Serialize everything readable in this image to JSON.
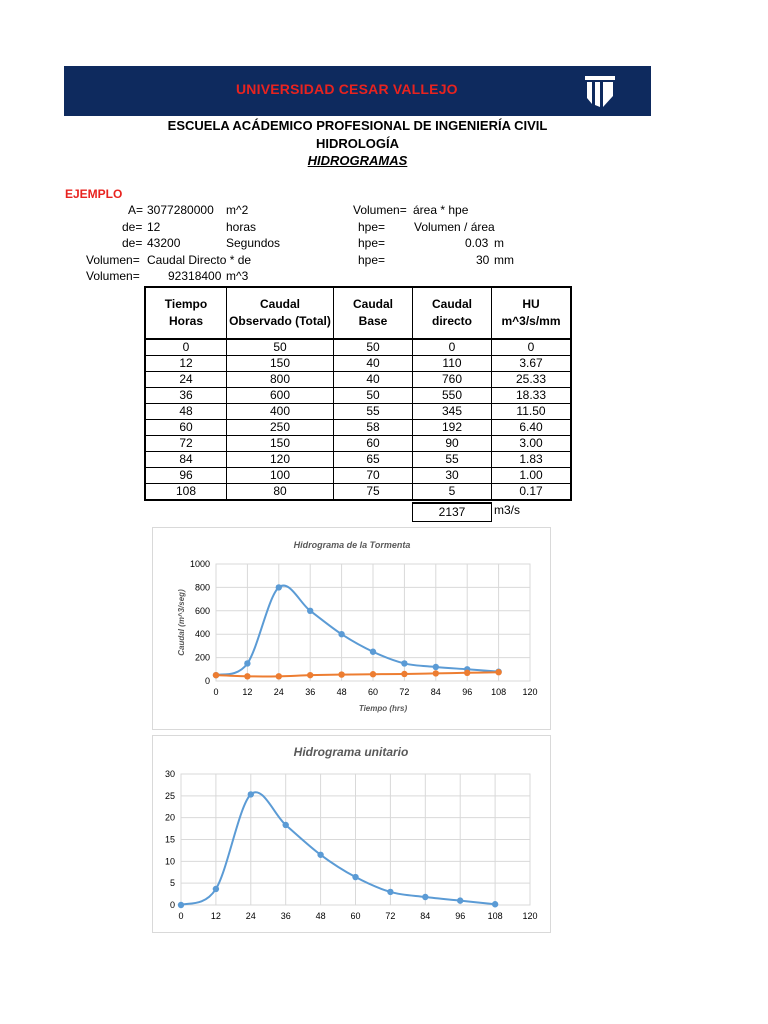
{
  "header": {
    "university": "UNIVERSIDAD CESAR VALLEJO",
    "school": "ESCUELA ACÁDEMICO PROFESIONAL DE INGENIERÍA CIVIL",
    "course": "HIDROLOGÍA",
    "topic": "HIDROGRAMAS"
  },
  "example": {
    "label": "EJEMPLO",
    "left_lines": [
      {
        "key": "A=",
        "value": "3077280000",
        "unit": "m^2"
      },
      {
        "key": "de=",
        "value": "12",
        "unit": "horas"
      },
      {
        "key": "de=",
        "value": "43200",
        "unit": "Segundos"
      },
      {
        "key": "Volumen=",
        "value": "Caudal Directo * de",
        "unit": ""
      },
      {
        "key": "Volumen=",
        "value": "92318400",
        "unit": "m^3"
      }
    ],
    "right_lines": [
      {
        "key": "Volumen=",
        "value": "área * hpe",
        "unit": ""
      },
      {
        "key": "hpe=",
        "value": "Volumen / área",
        "unit": ""
      },
      {
        "key": "hpe=",
        "value": "0.03",
        "unit": "m"
      },
      {
        "key": "hpe=",
        "value": "30",
        "unit": "mm"
      }
    ]
  },
  "table": {
    "headers": [
      [
        "Tiempo",
        "Horas"
      ],
      [
        "Caudal",
        "Observado (Total)"
      ],
      [
        "Caudal",
        "Base"
      ],
      [
        "Caudal",
        "directo"
      ],
      [
        "HU",
        "m^3/s/mm"
      ]
    ],
    "rows": [
      [
        "0",
        "50",
        "50",
        "0",
        "0"
      ],
      [
        "12",
        "150",
        "40",
        "110",
        "3.67"
      ],
      [
        "24",
        "800",
        "40",
        "760",
        "25.33"
      ],
      [
        "36",
        "600",
        "50",
        "550",
        "18.33"
      ],
      [
        "48",
        "400",
        "55",
        "345",
        "11.50"
      ],
      [
        "60",
        "250",
        "58",
        "192",
        "6.40"
      ],
      [
        "72",
        "150",
        "60",
        "90",
        "3.00"
      ],
      [
        "84",
        "120",
        "65",
        "55",
        "1.83"
      ],
      [
        "96",
        "100",
        "70",
        "30",
        "1.00"
      ],
      [
        "108",
        "80",
        "75",
        "5",
        "0.17"
      ]
    ],
    "sum_value": "2137",
    "sum_unit": "m3/s"
  },
  "chart_data": [
    {
      "type": "line",
      "title": "Hidrograma de la Tormenta",
      "xlabel": "Tiempo (hrs)",
      "ylabel": "Caudal (m^3/seg)",
      "xlim": [
        0,
        120
      ],
      "ylim": [
        0,
        1000
      ],
      "xticks": [
        0,
        12,
        24,
        36,
        48,
        60,
        72,
        84,
        96,
        108,
        120
      ],
      "yticks": [
        0,
        200,
        400,
        600,
        800,
        1000
      ],
      "grid": true,
      "x": [
        0,
        12,
        24,
        36,
        48,
        60,
        72,
        84,
        96,
        108
      ],
      "series": [
        {
          "values": [
            50,
            150,
            800,
            600,
            400,
            250,
            150,
            120,
            100,
            80
          ],
          "color": "#5b9bd5"
        },
        {
          "values": [
            50,
            40,
            40,
            50,
            55,
            58,
            60,
            65,
            70,
            75
          ],
          "color": "#ed7d31"
        }
      ]
    },
    {
      "type": "line",
      "title": "Hidrograma unitario",
      "xlabel": "",
      "ylabel": "",
      "xlim": [
        0,
        120
      ],
      "ylim": [
        0,
        30
      ],
      "xticks": [
        0,
        12,
        24,
        36,
        48,
        60,
        72,
        84,
        96,
        108,
        120
      ],
      "yticks": [
        0,
        5,
        10,
        15,
        20,
        25,
        30
      ],
      "grid": true,
      "x": [
        0,
        12,
        24,
        36,
        48,
        60,
        72,
        84,
        96,
        108
      ],
      "series": [
        {
          "values": [
            0,
            3.67,
            25.33,
            18.33,
            11.5,
            6.4,
            3.0,
            1.83,
            1.0,
            0.17
          ],
          "color": "#5b9bd5"
        }
      ]
    }
  ],
  "colors": {
    "banner": "#0e2a5e",
    "accent_red": "#e8231f",
    "series_blue": "#5b9bd5",
    "series_orange": "#ed7d31"
  },
  "icons": {
    "logo": "ucv-shield-logo-icon"
  }
}
